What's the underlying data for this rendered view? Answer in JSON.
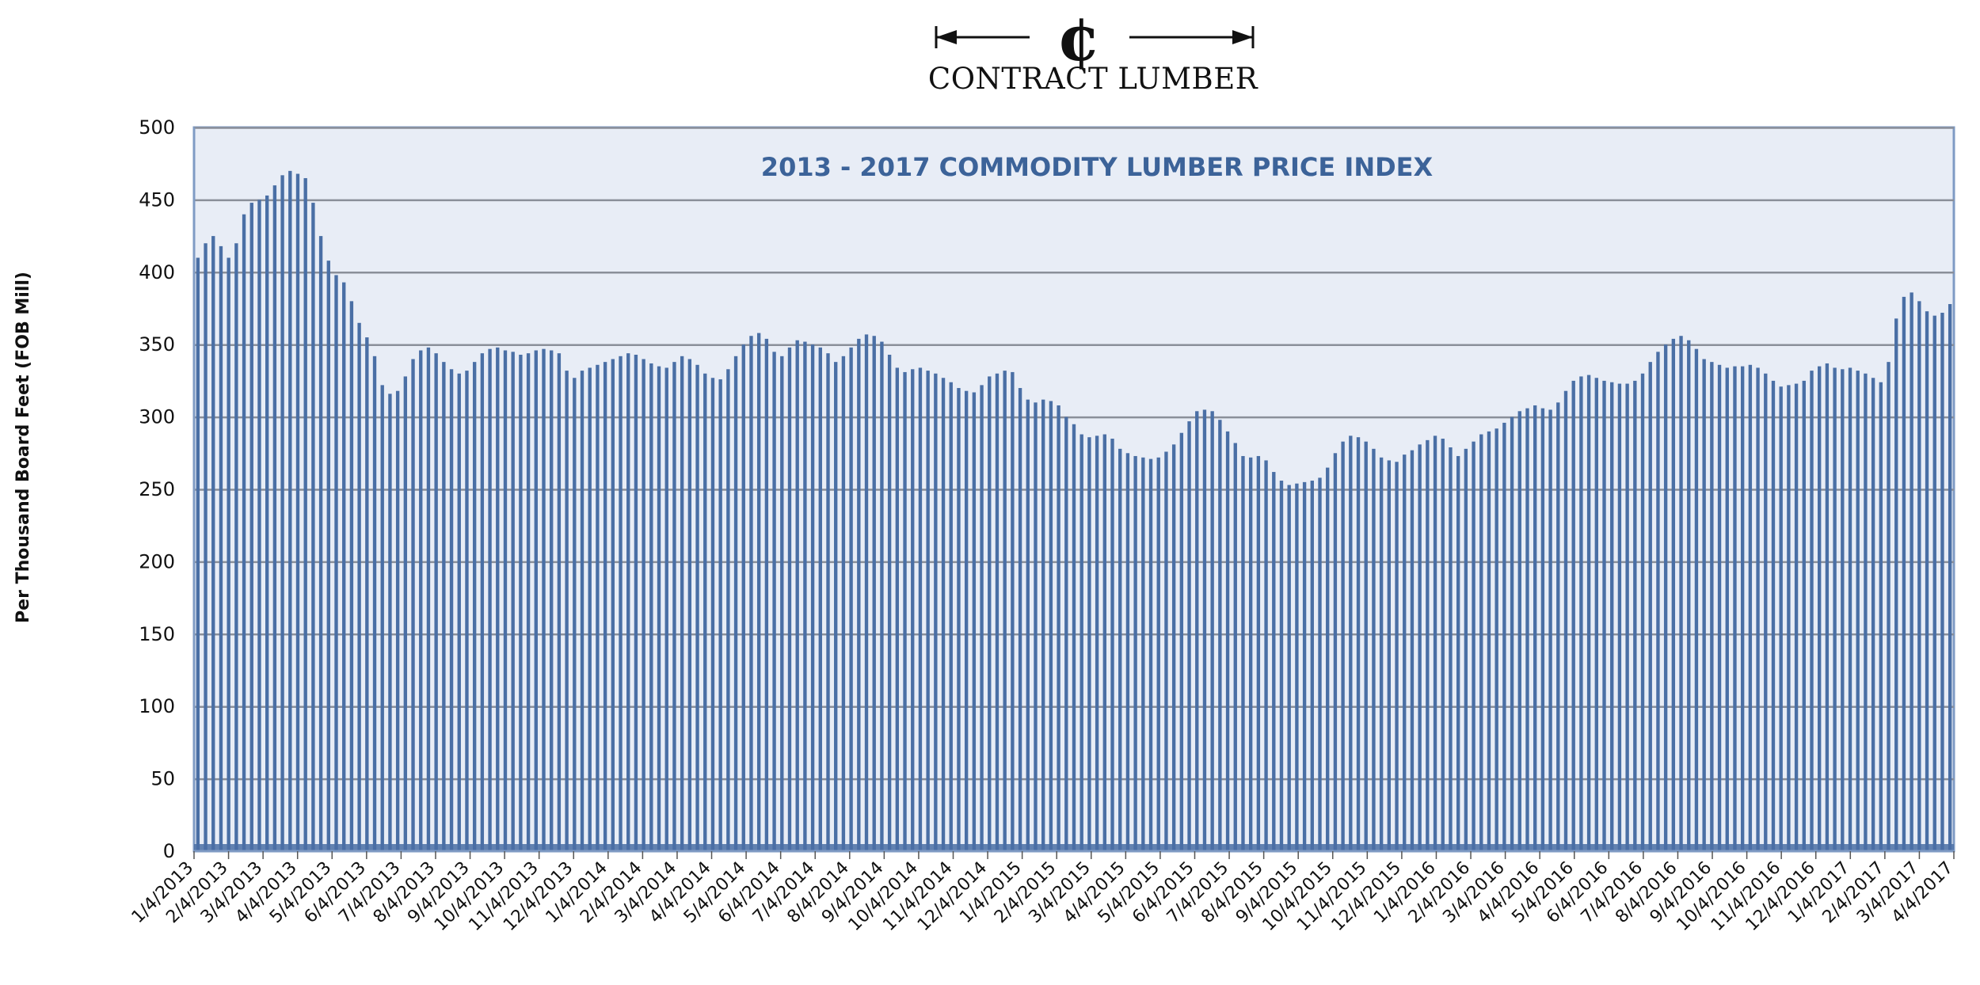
{
  "logo": {
    "text": "CONTRACT LUMBER",
    "symbol": "¢",
    "color": "#111111"
  },
  "chart_data": {
    "type": "bar",
    "title": "2013 - 2017 COMMODITY LUMBER PRICE INDEX",
    "xlabel": "",
    "ylabel": "Per Thousand Board Feet (FOB Mill)",
    "ylim": [
      0,
      500
    ],
    "yticks": [
      0,
      50,
      100,
      150,
      200,
      250,
      300,
      350,
      400,
      450,
      500
    ],
    "grid": true,
    "legend": "none",
    "colors": {
      "bar": "#4a6fa5",
      "plot_bg": "#e8edf6",
      "grid": "#8a8f99",
      "border": "#7f9bc4",
      "title": "#3c6399"
    },
    "x_tick_labels": [
      "1/4/2013",
      "2/4/2013",
      "3/4/2013",
      "4/4/2013",
      "5/4/2013",
      "6/4/2013",
      "7/4/2013",
      "8/4/2013",
      "9/4/2013",
      "10/4/2013",
      "11/4/2013",
      "12/4/2013",
      "1/4/2014",
      "2/4/2014",
      "3/4/2014",
      "4/4/2014",
      "5/4/2014",
      "6/4/2014",
      "7/4/2014",
      "8/4/2014",
      "9/4/2014",
      "10/4/2014",
      "11/4/2014",
      "12/4/2014",
      "1/4/2015",
      "2/4/2015",
      "3/4/2015",
      "4/4/2015",
      "5/4/2015",
      "6/4/2015",
      "7/4/2015",
      "8/4/2015",
      "9/4/2015",
      "10/4/2015",
      "11/4/2015",
      "12/4/2015",
      "1/4/2016",
      "2/4/2016",
      "3/4/2016",
      "4/4/2016",
      "5/4/2016",
      "6/4/2016",
      "7/4/2016",
      "8/4/2016",
      "9/4/2016",
      "10/4/2016",
      "11/4/2016",
      "12/4/2016",
      "1/4/2017",
      "2/4/2017",
      "3/4/2017",
      "4/4/2017"
    ],
    "values": [
      410,
      420,
      425,
      418,
      410,
      420,
      440,
      448,
      450,
      453,
      460,
      467,
      470,
      468,
      465,
      448,
      425,
      408,
      398,
      393,
      380,
      365,
      355,
      342,
      322,
      316,
      318,
      328,
      340,
      346,
      348,
      344,
      338,
      333,
      330,
      332,
      338,
      344,
      347,
      348,
      346,
      345,
      343,
      344,
      346,
      347,
      346,
      344,
      332,
      327,
      332,
      334,
      336,
      338,
      340,
      342,
      344,
      343,
      340,
      337,
      335,
      334,
      338,
      342,
      340,
      336,
      330,
      327,
      326,
      333,
      342,
      350,
      356,
      358,
      354,
      345,
      342,
      348,
      353,
      352,
      350,
      348,
      344,
      338,
      342,
      348,
      354,
      357,
      356,
      352,
      343,
      334,
      331,
      333,
      334,
      332,
      330,
      327,
      324,
      320,
      318,
      317,
      322,
      328,
      330,
      332,
      331,
      320,
      312,
      310,
      312,
      311,
      308,
      300,
      295,
      288,
      286,
      287,
      288,
      285,
      278,
      275,
      273,
      272,
      271,
      272,
      276,
      281,
      289,
      297,
      304,
      305,
      304,
      298,
      290,
      282,
      273,
      272,
      273,
      270,
      262,
      256,
      253,
      254,
      255,
      256,
      258,
      265,
      275,
      283,
      287,
      286,
      283,
      278,
      272,
      270,
      269,
      274,
      277,
      281,
      284,
      287,
      285,
      279,
      273,
      278,
      283,
      288,
      290,
      292,
      296,
      300,
      304,
      306,
      308,
      306,
      305,
      310,
      318,
      325,
      328,
      329,
      327,
      325,
      324,
      323,
      323,
      325,
      330,
      338,
      345,
      350,
      354,
      356,
      353,
      347,
      340,
      338,
      336,
      334,
      335,
      335,
      336,
      334,
      330,
      325,
      321,
      322,
      323,
      325,
      332,
      335,
      337,
      334,
      333,
      334,
      332,
      330,
      327,
      324,
      338,
      368,
      383,
      386,
      380,
      373,
      370,
      372,
      378
    ]
  }
}
